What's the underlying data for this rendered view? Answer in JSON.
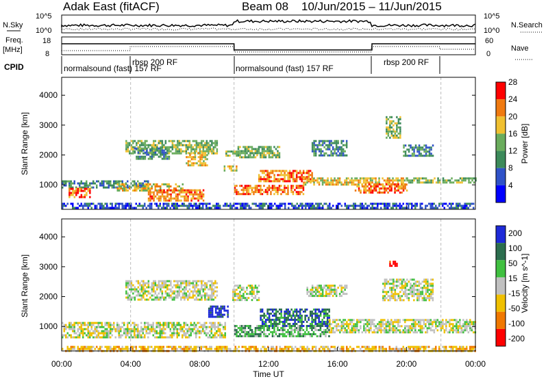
{
  "header": {
    "title": "Adak East (fitACF)",
    "beam": "Beam 08",
    "date_range": "10/Jun/2015 – 11/Jun/2015"
  },
  "nsky_panel": {
    "left_label": "N.Sky",
    "right_label": "N.Search",
    "left_ticks": [
      "10^5",
      "10^0"
    ],
    "right_ticks": [
      "10^5",
      "10^0"
    ]
  },
  "freq_panel": {
    "left_label_line1": "Freq.",
    "left_label_line2": "[MHz]",
    "right_label": "Nave",
    "left_ticks": [
      "18",
      "8"
    ],
    "right_ticks": [
      "60",
      "0"
    ]
  },
  "cpid": {
    "label": "CPID",
    "segments": [
      {
        "text": "normalsound (fast) 157 RF",
        "start_h": 0,
        "end_h": 10
      },
      {
        "text": "rbsp 200 RF",
        "start_h": 4,
        "end_h": 10
      },
      {
        "text": "normalsound (fast) 157 RF",
        "start_h": 10,
        "end_h": 18
      },
      {
        "text": "rbsp 200 RF",
        "start_h": 18,
        "end_h": 22
      }
    ]
  },
  "colors": {
    "power": [
      "#0000ff",
      "#2f52c8",
      "#3c8a5a",
      "#6aac5c",
      "#f0c030",
      "#f07a10",
      "#ff0000"
    ],
    "velocity": [
      "#1e2ad8",
      "#2c6e4e",
      "#40c040",
      "#c0c0c0",
      "#f0c000",
      "#f07800",
      "#ff0000"
    ]
  },
  "chart_data": [
    {
      "type": "heatmap",
      "name": "power",
      "ylabel": "Slant Range [km]",
      "xlabel": "Time UT",
      "xlim": [
        0,
        24
      ],
      "ylim": [
        180,
        4600
      ],
      "y_ticks": [
        1000,
        2000,
        3000,
        4000
      ],
      "x_ticks": [
        "00:00",
        "04:00",
        "08:00",
        "12:00",
        "16:00",
        "20:00",
        "00:00"
      ],
      "colorbar_label": "Power [dB]",
      "colorbar_ticks": [
        "4",
        "8",
        "12",
        "16",
        "20",
        "24",
        "28"
      ],
      "bands": [
        {
          "t": [
            0.0,
            5.0
          ],
          "r": [
            900,
            1150
          ],
          "level": 2
        },
        {
          "t": [
            0.4,
            1.6
          ],
          "r": [
            620,
            900
          ],
          "level": 5
        },
        {
          "t": [
            3.2,
            7.0
          ],
          "r": [
            800,
            1050
          ],
          "level": 4
        },
        {
          "t": [
            5.0,
            8.2
          ],
          "r": [
            480,
            850
          ],
          "level": 5
        },
        {
          "t": [
            3.7,
            9.0
          ],
          "r": [
            2050,
            2500
          ],
          "level": 3
        },
        {
          "t": [
            4.2,
            6.2
          ],
          "r": [
            1900,
            2250
          ],
          "level": 2
        },
        {
          "t": [
            7.2,
            8.4
          ],
          "r": [
            1650,
            2100
          ],
          "level": 4
        },
        {
          "t": [
            9.4,
            10.1
          ],
          "r": [
            1450,
            1650
          ],
          "level": 4
        },
        {
          "t": [
            9.5,
            10.2
          ],
          "r": [
            1950,
            2150
          ],
          "level": 3
        },
        {
          "t": [
            10.0,
            14.0
          ],
          "r": [
            700,
            1000
          ],
          "level": 5
        },
        {
          "t": [
            11.4,
            14.6
          ],
          "r": [
            1100,
            1500
          ],
          "level": 5
        },
        {
          "t": [
            14.0,
            20.0
          ],
          "r": [
            1000,
            1250
          ],
          "level": 4
        },
        {
          "t": [
            17.0,
            20.0
          ],
          "r": [
            750,
            1050
          ],
          "level": 5
        },
        {
          "t": [
            20.0,
            24.0
          ],
          "r": [
            1050,
            1250
          ],
          "level": 3
        },
        {
          "t": [
            10.2,
            12.6
          ],
          "r": [
            1900,
            2300
          ],
          "level": 3
        },
        {
          "t": [
            14.5,
            16.5
          ],
          "r": [
            2000,
            2500
          ],
          "level": 2
        },
        {
          "t": [
            18.8,
            19.6
          ],
          "r": [
            2550,
            3300
          ],
          "level": 3
        },
        {
          "t": [
            19.8,
            21.5
          ],
          "r": [
            1950,
            2350
          ],
          "level": 2
        },
        {
          "t": [
            0.0,
            24.0
          ],
          "r": [
            200,
            400
          ],
          "level": 1
        }
      ]
    },
    {
      "type": "heatmap",
      "name": "velocity",
      "ylabel": "Slant Range [km]",
      "xlabel": "Time UT",
      "xlim": [
        0,
        24
      ],
      "ylim": [
        180,
        4600
      ],
      "y_ticks": [
        1000,
        2000,
        3000,
        4000
      ],
      "x_ticks": [
        "00:00",
        "04:00",
        "08:00",
        "12:00",
        "16:00",
        "20:00",
        "00:00"
      ],
      "colorbar_label": "Velocity [m s^-1]",
      "colorbar_ticks": [
        "200",
        "100",
        "50",
        "15",
        "-15",
        "-50",
        "-100",
        "-200"
      ],
      "bands": [
        {
          "t": [
            0.0,
            9.5
          ],
          "r": [
            650,
            1150
          ],
          "level": 3
        },
        {
          "t": [
            3.7,
            9.0
          ],
          "r": [
            1900,
            2550
          ],
          "level": 3
        },
        {
          "t": [
            8.5,
            9.6
          ],
          "r": [
            1300,
            1700
          ],
          "level": 0
        },
        {
          "t": [
            9.9,
            11.4
          ],
          "r": [
            1900,
            2400
          ],
          "level": 3
        },
        {
          "t": [
            10.0,
            15.5
          ],
          "r": [
            650,
            1050
          ],
          "level": 2
        },
        {
          "t": [
            11.5,
            15.5
          ],
          "r": [
            1050,
            1600
          ],
          "level": 1
        },
        {
          "t": [
            15.5,
            24.0
          ],
          "r": [
            800,
            1250
          ],
          "level": 3
        },
        {
          "t": [
            14.2,
            16.5
          ],
          "r": [
            2000,
            2400
          ],
          "level": 3
        },
        {
          "t": [
            18.6,
            21.5
          ],
          "r": [
            1900,
            2600
          ],
          "level": 3
        },
        {
          "t": [
            19.0,
            19.4
          ],
          "r": [
            3000,
            3200
          ],
          "level": 6
        },
        {
          "t": [
            0.0,
            24.0
          ],
          "r": [
            200,
            350
          ],
          "level": 4
        }
      ]
    }
  ]
}
